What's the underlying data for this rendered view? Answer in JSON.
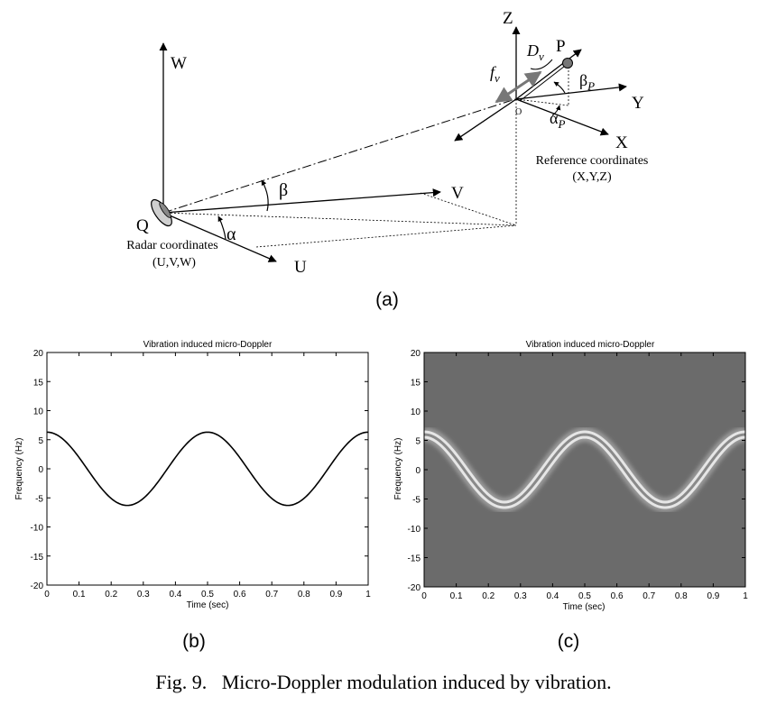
{
  "diagram": {
    "axes": {
      "W": "W",
      "U": "U",
      "V": "V",
      "Z": "Z",
      "Y": "Y",
      "X": "X"
    },
    "points": {
      "Q": "Q",
      "P": "P",
      "O": "O"
    },
    "angles": {
      "alpha": "α",
      "beta": "β",
      "alpha_p": "α",
      "alpha_p_sub": "P",
      "beta_p": "β",
      "beta_p_sub": "P"
    },
    "labels": {
      "radar_line1": "Radar coordinates",
      "radar_line2": "(U,V,W)",
      "ref_line1": "Reference coordinates",
      "ref_line2": "(X,Y,Z)",
      "dv": "D",
      "dv_sub": "v",
      "fv": "f",
      "fv_sub": "v"
    }
  },
  "captions": {
    "a": "(a)",
    "b": "(b)",
    "c": "(c)",
    "fig": "Fig. 9.   Micro-Doppler modulation induced by vibration."
  },
  "chart_data": [
    {
      "type": "line",
      "title": "Vibration induced micro-Doppler",
      "xlabel": "Time (sec)",
      "ylabel": "Frequency (Hz)",
      "xlim": [
        0,
        1
      ],
      "ylim": [
        -20,
        20
      ],
      "xticks": [
        "0",
        "0.1",
        "0.2",
        "0.3",
        "0.4",
        "0.5",
        "0.6",
        "0.7",
        "0.8",
        "0.9",
        "1"
      ],
      "yticks": [
        "20",
        "15",
        "10",
        "5",
        "0",
        "-5",
        "-10",
        "-15",
        "-20"
      ],
      "series": [
        {
          "amplitude": 6.3,
          "frequency": 2,
          "phase": "cosine"
        }
      ],
      "grid": false
    },
    {
      "type": "heatmap",
      "title": "Vibration induced micro-Doppler",
      "xlabel": "Time (sec)",
      "ylabel": "Frequency (Hz)",
      "xlim": [
        0,
        1
      ],
      "ylim": [
        -20,
        20
      ],
      "xticks": [
        "0",
        "0.1",
        "0.2",
        "0.3",
        "0.4",
        "0.5",
        "0.6",
        "0.7",
        "0.8",
        "0.9",
        "1"
      ],
      "yticks": [
        "20",
        "15",
        "10",
        "5",
        "0",
        "-5",
        "-10",
        "-15",
        "-20"
      ],
      "series": [
        {
          "amplitude": 6.0,
          "frequency": 2,
          "phase": "cosine"
        }
      ],
      "grid": false
    }
  ]
}
